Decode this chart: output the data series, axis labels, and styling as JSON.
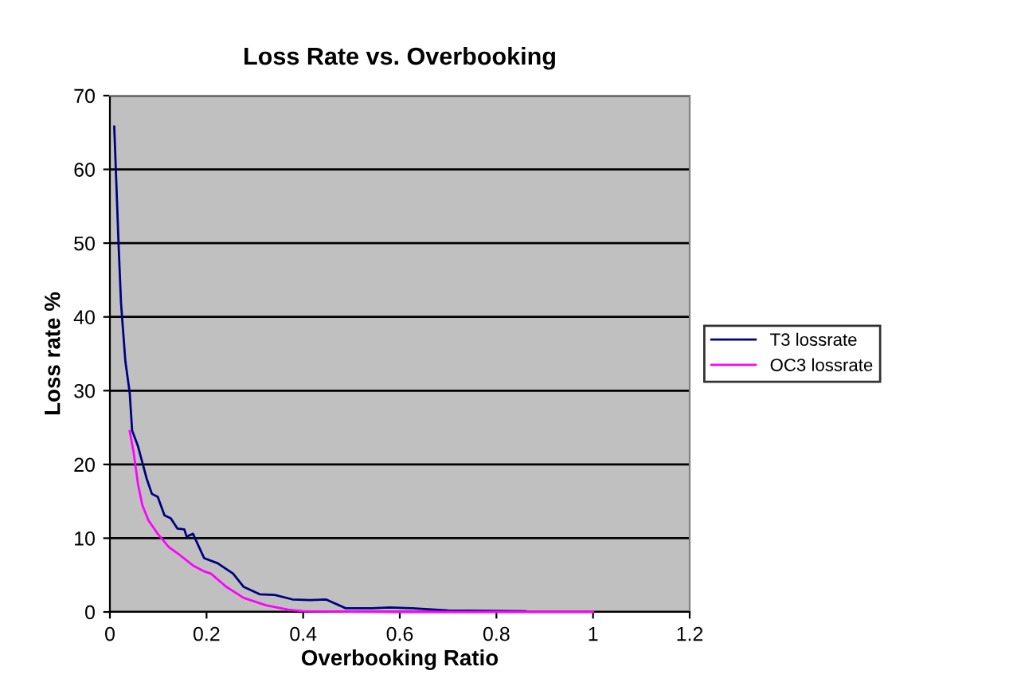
{
  "chart_data": {
    "type": "line",
    "title": "Loss Rate vs. Overbooking",
    "xlabel": "Overbooking Ratio",
    "ylabel": "Loss rate %",
    "xlim": [
      0,
      1.2
    ],
    "xticks": [
      0,
      0.2,
      0.4,
      0.6,
      0.8,
      1,
      1.2
    ],
    "ylim": [
      0,
      70
    ],
    "yticks": [
      0,
      10,
      20,
      30,
      40,
      50,
      60,
      70
    ],
    "grid": "y",
    "legend": "right",
    "marker": "none",
    "line_style": "solid",
    "series": [
      {
        "name": "T3 lossrate",
        "color": "#000080",
        "x": [
          0.009,
          0.018,
          0.023,
          0.032,
          0.041,
          0.046,
          0.058,
          0.067,
          0.076,
          0.087,
          0.099,
          0.113,
          0.126,
          0.14,
          0.154,
          0.159,
          0.172,
          0.195,
          0.223,
          0.255,
          0.277,
          0.31,
          0.341,
          0.378,
          0.415,
          0.447,
          0.488,
          0.543,
          0.58,
          0.626,
          0.7,
          0.86
        ],
        "values": [
          65.8,
          49.8,
          41.9,
          34,
          29.7,
          24.6,
          22.5,
          20.3,
          18.1,
          16,
          15.6,
          13.1,
          12.7,
          11.3,
          11.2,
          10.2,
          10.6,
          7.3,
          6.6,
          5.2,
          3.4,
          2.4,
          2.3,
          1.7,
          1.6,
          1.7,
          0.5,
          0.5,
          0.6,
          0.5,
          0.2,
          0.1
        ]
      },
      {
        "name": "OC3 lossrate",
        "color": "#ff00ff",
        "x": [
          0.041,
          0.049,
          0.058,
          0.067,
          0.08,
          0.099,
          0.122,
          0.145,
          0.172,
          0.195,
          0.209,
          0.241,
          0.277,
          0.323,
          0.369,
          0.4,
          0.6,
          0.8,
          1.0
        ],
        "values": [
          24.5,
          21.7,
          17.4,
          14.5,
          12.4,
          10.6,
          8.8,
          7.7,
          6.3,
          5.5,
          5.2,
          3.4,
          1.9,
          0.9,
          0.3,
          0.1,
          0,
          0,
          0
        ]
      }
    ]
  }
}
